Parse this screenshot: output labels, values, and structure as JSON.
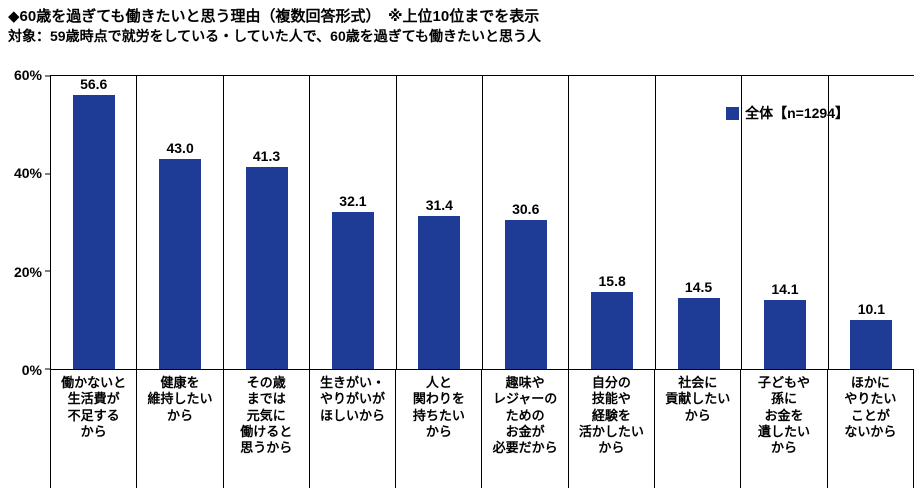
{
  "header": {
    "title": "◆60歳を過ぎても働きたいと思う理由（複数回答形式）　※上位10位までを表示",
    "subtitle": "対象：59歳時点で就労をしている・していた人で、60歳を過ぎても働きたいと思う人"
  },
  "legend": {
    "label": "全体【n=1294】"
  },
  "chart_data": {
    "type": "bar",
    "title": "60歳を過ぎても働きたいと思う理由（複数回答形式）上位10位",
    "xlabel": "",
    "ylabel": "",
    "ylim": [
      0,
      60
    ],
    "grid": "vertical-category-separators-only",
    "legend_position": "top-right",
    "legend_label": "全体【n=1294】",
    "bar_color": "#1e3c96",
    "categories": [
      "働かないと\n生活費が\n不足する\nから",
      "健康を\n維持したい\nから",
      "その歳\nまでは\n元気に\n働けると\n思うから",
      "生きがい・\nやりがいが\nほしいから",
      "人と\n関わりを\n持ちたい\nから",
      "趣味や\nレジャーの\nための\nお金が\n必要だから",
      "自分の\n技能や\n経験を\n活かしたい\nから",
      "社会に\n貢献したい\nから",
      "子どもや\n孫に\nお金を\n遺したい\nから",
      "ほかに\nやりたい\nことが\nないから"
    ],
    "values": [
      56.6,
      43.0,
      41.3,
      32.1,
      31.4,
      30.6,
      15.8,
      14.5,
      14.1,
      10.1
    ],
    "yticks": [
      {
        "label": "60%",
        "pct": 0
      },
      {
        "label": "40%",
        "pct": 33.333
      },
      {
        "label": "20%",
        "pct": 66.667
      },
      {
        "label": "0%",
        "pct": 100
      }
    ]
  }
}
